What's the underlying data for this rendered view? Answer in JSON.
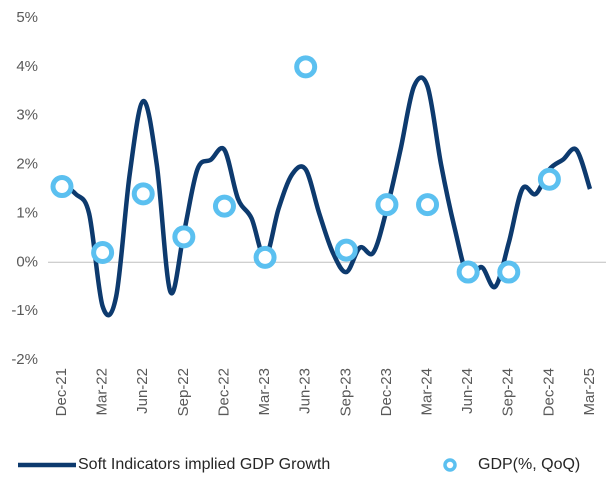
{
  "chart_data": {
    "type": "line",
    "categories": [
      "Dec-21",
      null,
      null,
      "Mar-22",
      null,
      null,
      "Jun-22",
      null,
      null,
      "Sep-22",
      null,
      null,
      "Dec-22",
      null,
      null,
      "Mar-23",
      null,
      null,
      "Jun-23",
      null,
      null,
      "Sep-23",
      null,
      null,
      "Dec-23",
      null,
      null,
      "Mar-24",
      null,
      null,
      "Jun-24",
      null,
      null,
      "Sep-24",
      null,
      null,
      "Dec-24",
      null,
      null,
      "Mar-25"
    ],
    "series": [
      {
        "name": "Soft Indicators implied GDP Growth",
        "color": "#0d3a6e",
        "style": "line",
        "values": [
          1.6,
          1.4,
          1.0,
          -0.9,
          -0.7,
          1.8,
          3.3,
          2.0,
          -0.6,
          0.6,
          1.9,
          2.1,
          2.3,
          1.3,
          0.9,
          0.1,
          1.1,
          1.8,
          1.9,
          1.0,
          0.2,
          -0.2,
          0.3,
          0.2,
          1.1,
          2.3,
          3.6,
          3.6,
          2.0,
          0.7,
          -0.3,
          -0.1,
          -0.5,
          0.4,
          1.5,
          1.4,
          1.9,
          2.1,
          2.3,
          1.5
        ]
      },
      {
        "name": "GDP(%, QoQ)",
        "color": "#5bc0f0",
        "style": "marker",
        "values": [
          1.55,
          null,
          null,
          0.2,
          null,
          null,
          1.4,
          null,
          null,
          0.52,
          null,
          null,
          1.15,
          null,
          null,
          0.1,
          null,
          null,
          4.0,
          null,
          null,
          0.25,
          null,
          null,
          1.18,
          null,
          null,
          1.18,
          null,
          null,
          -0.2,
          null,
          null,
          -0.2,
          null,
          null,
          1.7,
          null,
          null,
          null
        ]
      }
    ],
    "ylim": [
      -2,
      5
    ],
    "yticks": [
      {
        "value": -2,
        "label": "-2%"
      },
      {
        "value": -1,
        "label": "-1%"
      },
      {
        "value": 0,
        "label": "0%"
      },
      {
        "value": 1,
        "label": "1%"
      },
      {
        "value": 2,
        "label": "2%"
      },
      {
        "value": 3,
        "label": "3%"
      },
      {
        "value": 4,
        "label": "4%"
      },
      {
        "value": 5,
        "label": "5%"
      }
    ],
    "legend": "bottom"
  }
}
